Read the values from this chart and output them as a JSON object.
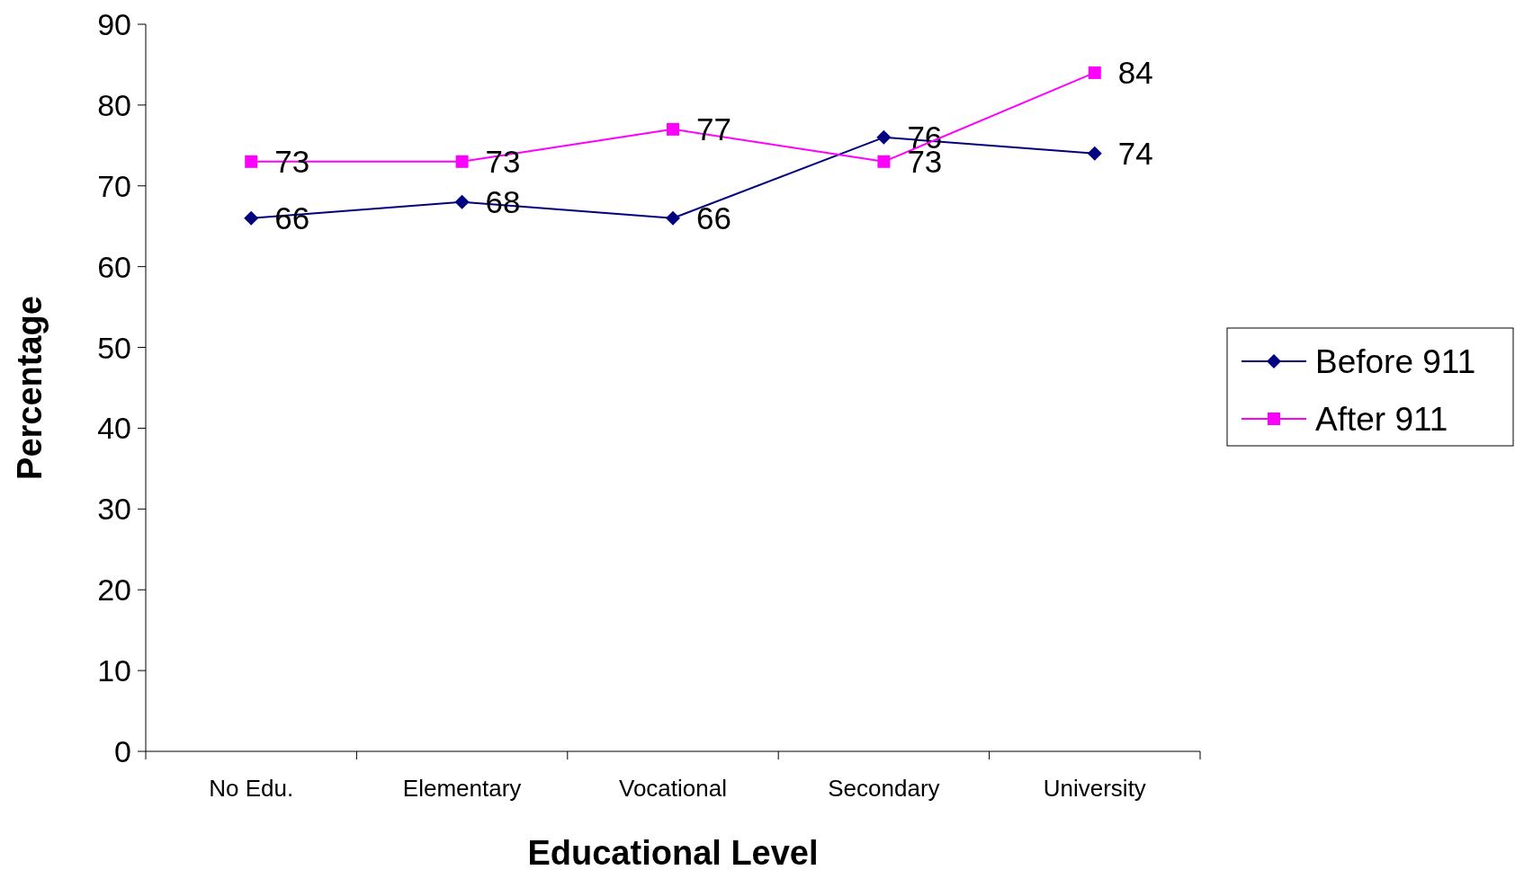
{
  "chart_data": {
    "type": "line",
    "xlabel": "Educational Level",
    "ylabel": "Percentage",
    "categories": [
      "No Edu.",
      "Elementary",
      "Vocational",
      "Secondary",
      "University"
    ],
    "series": [
      {
        "name": "Before 911",
        "color": "#000080",
        "marker": "diamond",
        "values": [
          66,
          68,
          66,
          76,
          74
        ]
      },
      {
        "name": "After 911",
        "color": "#ff00ff",
        "marker": "square",
        "values": [
          73,
          73,
          77,
          73,
          84
        ]
      }
    ],
    "ylim": [
      0,
      90
    ],
    "yticks": [
      0,
      10,
      20,
      30,
      40,
      50,
      60,
      70,
      80,
      90
    ],
    "data_labels": true,
    "legend": "right",
    "grid": false
  }
}
